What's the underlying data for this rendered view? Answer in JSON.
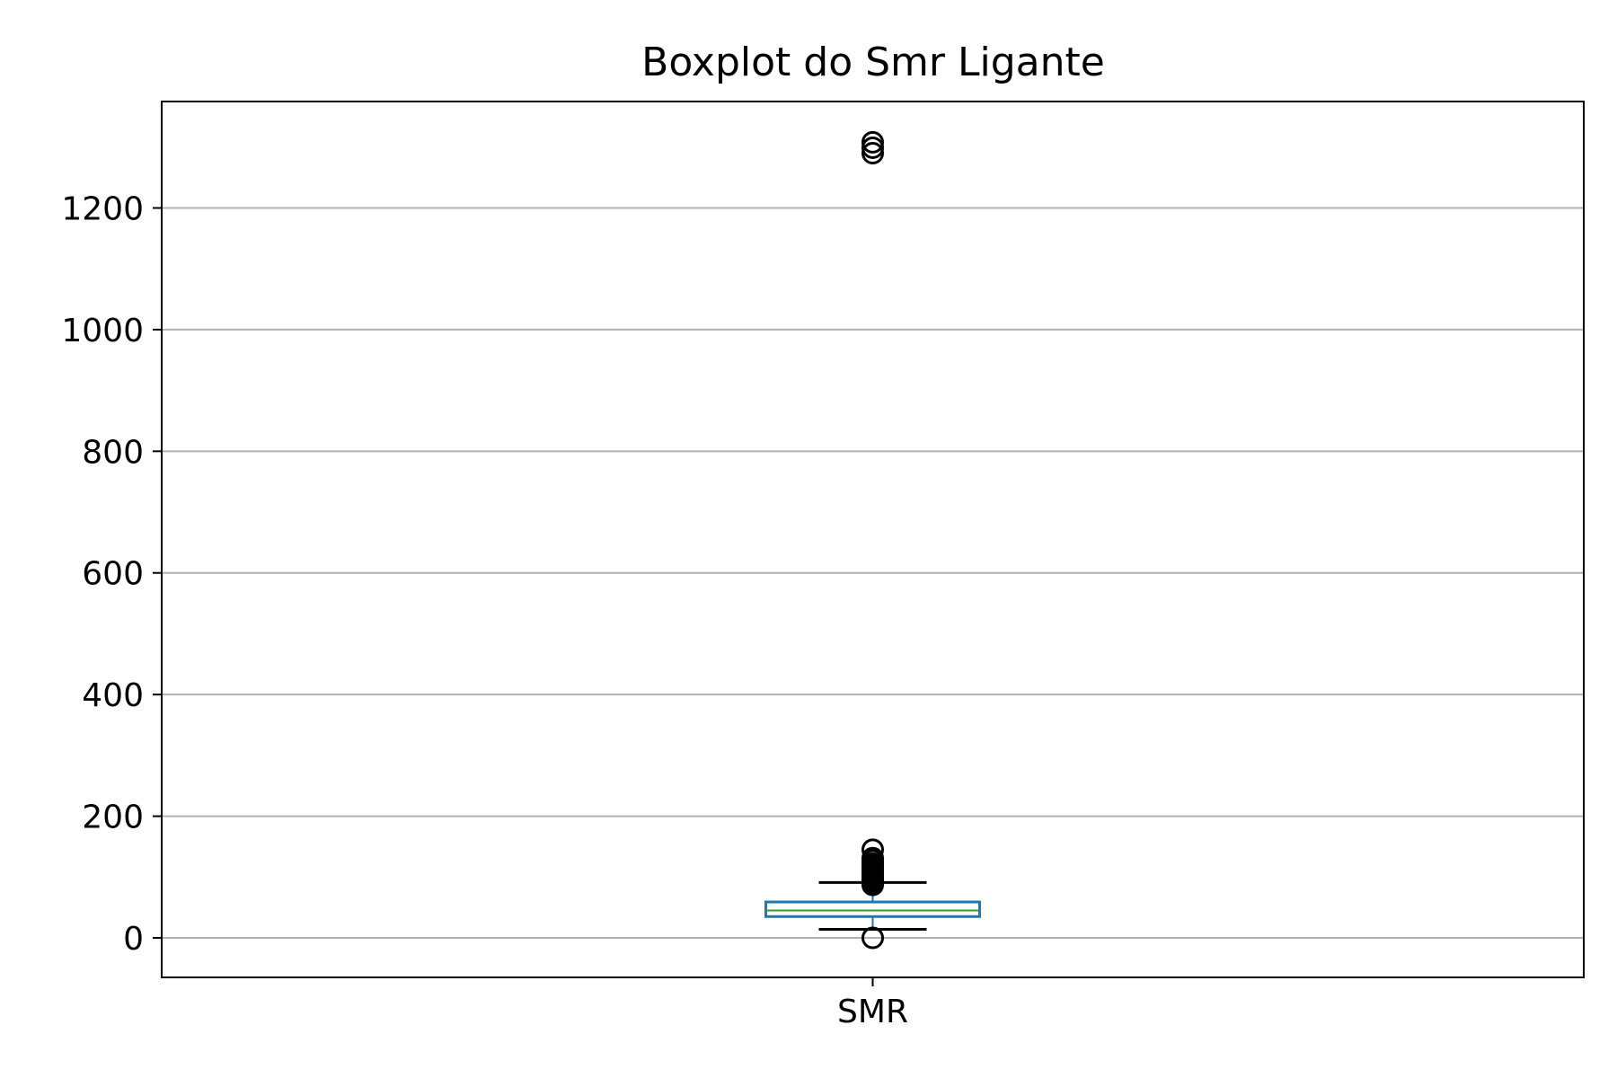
{
  "chart_data": {
    "type": "box",
    "title": "Boxplot do Smr Ligante",
    "xlabel": "",
    "ylabel": "",
    "categories": [
      "SMR"
    ],
    "yticks": [
      0,
      200,
      400,
      600,
      800,
      1000,
      1200
    ],
    "ylim": [
      -65,
      1375
    ],
    "grid": "y",
    "boxes": [
      {
        "category": "SMR",
        "whisker_low": 14,
        "q1": 35,
        "median": 45,
        "q3": 59,
        "whisker_high": 91,
        "outliers": [
          0,
          87,
          90,
          93,
          96,
          99,
          103,
          106,
          110,
          114,
          118,
          122,
          127,
          131,
          145,
          1290,
          1299,
          1308
        ]
      }
    ],
    "colors": {
      "box": "#1f77b4",
      "median": "#2ca02c",
      "whisker": "#000000",
      "outlier": "#000000",
      "grid": "#b0b0b0",
      "axes": "#000000"
    }
  }
}
